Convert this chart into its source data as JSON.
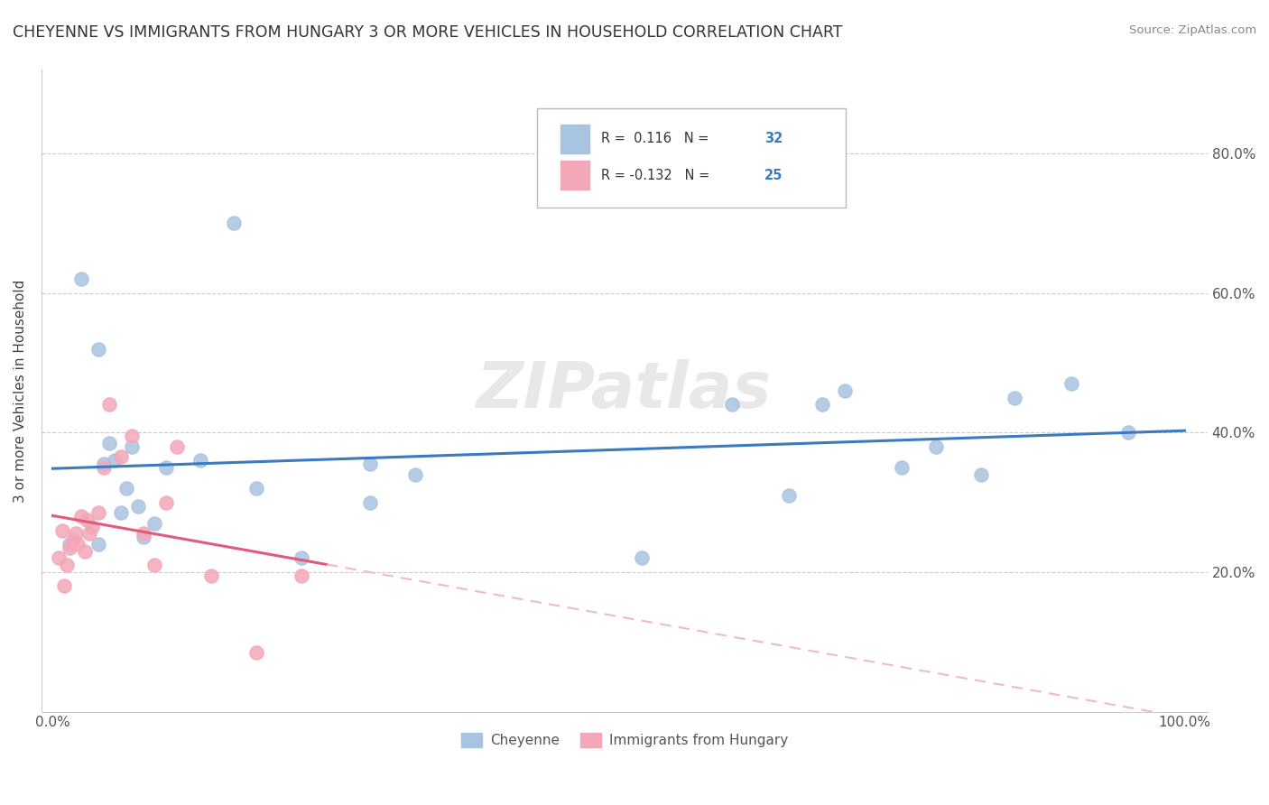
{
  "title": "CHEYENNE VS IMMIGRANTS FROM HUNGARY 3 OR MORE VEHICLES IN HOUSEHOLD CORRELATION CHART",
  "source": "Source: ZipAtlas.com",
  "ylabel": "3 or more Vehicles in Household",
  "yticks": [
    "20.0%",
    "40.0%",
    "60.0%",
    "80.0%"
  ],
  "ytick_vals": [
    0.2,
    0.4,
    0.6,
    0.8
  ],
  "legend_label1": "Cheyenne",
  "legend_label2": "Immigrants from Hungary",
  "R1": 0.116,
  "N1": 32,
  "R2": -0.132,
  "N2": 25,
  "cheyenne_color": "#a8c4e0",
  "hungary_color": "#f4a7b9",
  "cheyenne_line_color": "#3a7bbf",
  "hungary_line_color": "#e05a7a",
  "hungary_dash_color": "#f0b8c8",
  "background_color": "#ffffff",
  "watermark": "ZIPatlas",
  "cheyenne_x": [
    0.015,
    0.025,
    0.04,
    0.04,
    0.045,
    0.05,
    0.055,
    0.06,
    0.065,
    0.07,
    0.075,
    0.08,
    0.09,
    0.1,
    0.13,
    0.16,
    0.18,
    0.22,
    0.28,
    0.28,
    0.32,
    0.52,
    0.6,
    0.65,
    0.68,
    0.7,
    0.75,
    0.78,
    0.82,
    0.85,
    0.9,
    0.95
  ],
  "cheyenne_y": [
    0.24,
    0.62,
    0.52,
    0.24,
    0.355,
    0.385,
    0.36,
    0.285,
    0.32,
    0.38,
    0.295,
    0.25,
    0.27,
    0.35,
    0.36,
    0.7,
    0.32,
    0.22,
    0.355,
    0.3,
    0.34,
    0.22,
    0.44,
    0.31,
    0.44,
    0.46,
    0.35,
    0.38,
    0.34,
    0.45,
    0.47,
    0.4
  ],
  "hungary_x": [
    0.005,
    0.008,
    0.01,
    0.012,
    0.015,
    0.018,
    0.02,
    0.022,
    0.025,
    0.028,
    0.03,
    0.032,
    0.035,
    0.04,
    0.045,
    0.05,
    0.06,
    0.07,
    0.08,
    0.09,
    0.1,
    0.11,
    0.14,
    0.18,
    0.22
  ],
  "hungary_y": [
    0.22,
    0.26,
    0.18,
    0.21,
    0.235,
    0.245,
    0.255,
    0.24,
    0.28,
    0.23,
    0.275,
    0.255,
    0.265,
    0.285,
    0.35,
    0.44,
    0.365,
    0.395,
    0.255,
    0.21,
    0.3,
    0.38,
    0.195,
    0.085,
    0.195
  ]
}
